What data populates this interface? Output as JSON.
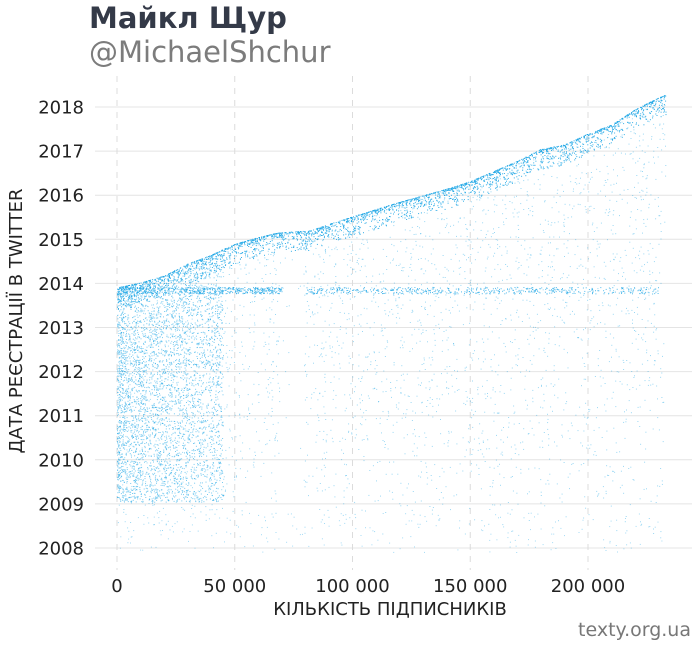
{
  "header": {
    "title": "Майкл Щур",
    "subtitle": "@MichaelShchur"
  },
  "footer": {
    "source": "texty.org.ua"
  },
  "chart_data": {
    "type": "scatter",
    "title": "",
    "xlabel": "КІЛЬКІСТЬ ПІДПИСНИКІВ",
    "ylabel": "ДАТА РЕЄСТРАЦІЇ В TWITTER",
    "x_ticks": [
      0,
      50000,
      100000,
      150000,
      200000
    ],
    "x_tick_labels": [
      "0",
      "50 000",
      "100 000",
      "150 000",
      "200 000"
    ],
    "y_ticks": [
      2008,
      2009,
      2010,
      2011,
      2012,
      2013,
      2014,
      2015,
      2016,
      2017,
      2018
    ],
    "y_tick_labels": [
      "2008",
      "2009",
      "2010",
      "2011",
      "2012",
      "2013",
      "2014",
      "2015",
      "2016",
      "2017",
      "2018"
    ],
    "xlim": [
      -4000,
      244000
    ],
    "ylim": [
      2007.6,
      2018.3
    ],
    "grid": true,
    "point_color": "#1ea6e6",
    "frontier": {
      "x": [
        0,
        1000,
        10000,
        20000,
        30000,
        40000,
        50000,
        60000,
        68000,
        75000,
        82000,
        90000,
        100000,
        120000,
        140000,
        150000,
        160000,
        170000,
        180000,
        190000,
        200000,
        210000,
        220000,
        230000,
        233000
      ],
      "y": [
        2013.85,
        2013.92,
        2014.02,
        2014.18,
        2014.45,
        2014.65,
        2014.9,
        2015.05,
        2015.15,
        2015.18,
        2015.2,
        2015.35,
        2015.52,
        2015.85,
        2016.15,
        2016.32,
        2016.55,
        2016.78,
        2017.05,
        2017.15,
        2017.4,
        2017.6,
        2017.95,
        2018.22,
        2018.28
      ]
    },
    "dense_bands": [
      {
        "x": [
          0,
          70000
        ],
        "y": 2013.92
      },
      {
        "x": [
          80000,
          230000
        ],
        "y": 2013.92
      }
    ]
  }
}
